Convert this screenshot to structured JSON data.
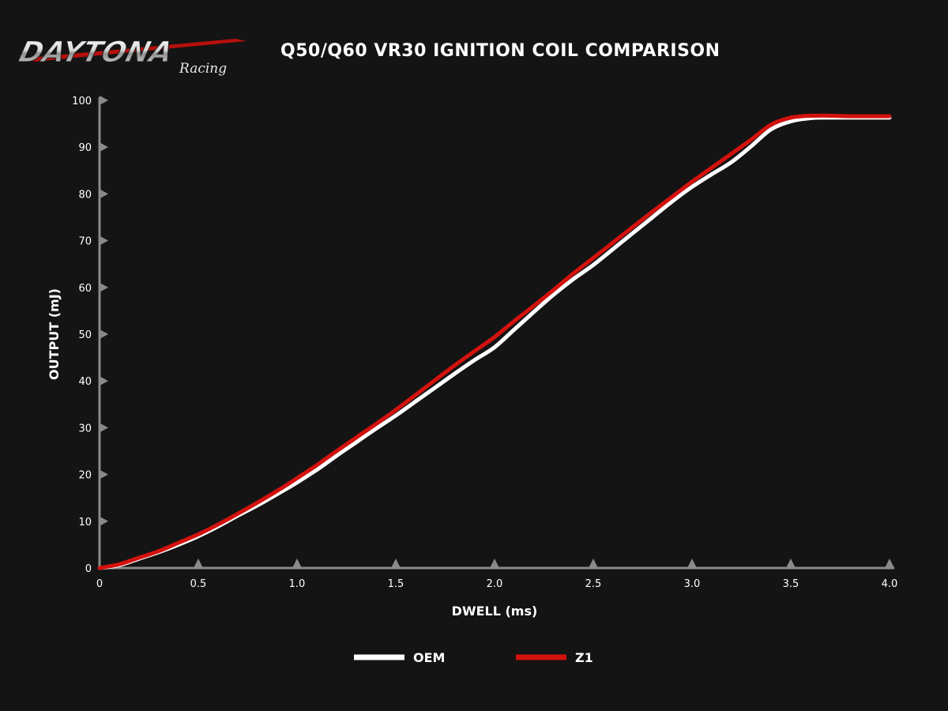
{
  "header": {
    "logo_text": "DAYTONA",
    "logo_subtext": "Racing",
    "title": "Q50/Q60 VR30 IGNITION COIL COMPARISON"
  },
  "colors": {
    "background": "#141414",
    "axis": "#8a8a8a",
    "oem": "#ffffff",
    "z1": "#d3120e"
  },
  "chart_data": {
    "type": "line",
    "title": "Q50/Q60 VR30 IGNITION COIL COMPARISON",
    "xlabel": "DWELL (ms)",
    "ylabel": "OUTPUT (mJ)",
    "xlim": [
      0,
      4.0
    ],
    "ylim": [
      0,
      100
    ],
    "xticks": [
      "0",
      "0.5",
      "1.0",
      "1.5",
      "2.0",
      "2.5",
      "3.0",
      "3.5",
      "4.0"
    ],
    "xtick_values": [
      0,
      0.5,
      1.0,
      1.5,
      2.0,
      2.5,
      3.0,
      3.5,
      4.0
    ],
    "yticks": [
      "0",
      "10",
      "20",
      "30",
      "40",
      "50",
      "60",
      "70",
      "80",
      "90",
      "100"
    ],
    "ytick_values": [
      0,
      10,
      20,
      30,
      40,
      50,
      60,
      70,
      80,
      90,
      100
    ],
    "grid": false,
    "legend_position": "bottom-center",
    "series": [
      {
        "name": "OEM",
        "color": "#ffffff",
        "x": [
          0,
          0.1,
          0.2,
          0.3,
          0.4,
          0.5,
          0.6,
          0.7,
          0.8,
          0.9,
          1.0,
          1.1,
          1.2,
          1.3,
          1.4,
          1.5,
          1.6,
          1.7,
          1.8,
          1.9,
          2.0,
          2.1,
          2.2,
          2.3,
          2.4,
          2.5,
          2.6,
          2.7,
          2.8,
          2.9,
          3.0,
          3.1,
          3.2,
          3.3,
          3.4,
          3.5,
          3.6,
          3.7,
          3.8,
          4.0
        ],
        "y": [
          0,
          0.6,
          2.0,
          3.4,
          5.0,
          6.8,
          8.9,
          11.2,
          13.4,
          15.8,
          18.3,
          21.0,
          24.0,
          26.9,
          29.8,
          32.6,
          35.6,
          38.6,
          41.6,
          44.5,
          47.2,
          51.0,
          54.8,
          58.5,
          61.8,
          64.8,
          68.2,
          71.6,
          75.0,
          78.4,
          81.5,
          84.2,
          86.8,
          90.2,
          93.8,
          95.5,
          96.2,
          96.3,
          96.3,
          96.3
        ]
      },
      {
        "name": "Z1",
        "color": "#d3120e",
        "x": [
          0,
          0.1,
          0.2,
          0.3,
          0.4,
          0.5,
          0.6,
          0.7,
          0.8,
          0.9,
          1.0,
          1.1,
          1.2,
          1.3,
          1.4,
          1.5,
          1.6,
          1.7,
          1.8,
          1.9,
          2.0,
          2.1,
          2.2,
          2.3,
          2.4,
          2.5,
          2.6,
          2.7,
          2.8,
          2.9,
          3.0,
          3.1,
          3.2,
          3.3,
          3.4,
          3.5,
          3.6,
          3.7,
          3.8,
          4.0
        ],
        "y": [
          0,
          0.8,
          2.2,
          3.6,
          5.4,
          7.2,
          9.3,
          11.6,
          14.0,
          16.5,
          19.2,
          22.0,
          25.0,
          27.9,
          30.8,
          33.8,
          37.0,
          40.2,
          43.4,
          46.4,
          49.4,
          52.8,
          56.1,
          59.5,
          63.0,
          66.3,
          69.6,
          72.9,
          76.2,
          79.4,
          82.6,
          85.6,
          88.6,
          91.6,
          94.8,
          96.3,
          96.7,
          96.7,
          96.6,
          96.6
        ]
      }
    ]
  },
  "legend": {
    "items": [
      {
        "label": "OEM",
        "color": "#ffffff"
      },
      {
        "label": "Z1",
        "color": "#d3120e"
      }
    ]
  }
}
